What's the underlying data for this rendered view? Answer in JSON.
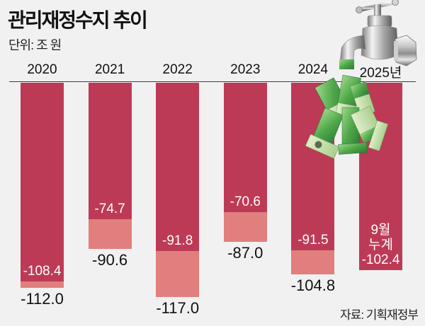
{
  "header": {
    "title": "관리재정수지 추이",
    "unit": "단위: 조 원"
  },
  "footer": {
    "source": "자료: 기획재정부"
  },
  "colors": {
    "background": "#f1f1f1",
    "bar_dark": "#bd3a56",
    "bar_light": "#e07f7d",
    "inner_label": "#ffffff",
    "outer_label": "#111111"
  },
  "chart_view": {
    "year_labels": [
      "2020",
      "2021",
      "2022",
      "2023",
      "2024",
      "2025년"
    ],
    "inner_labels": [
      [
        "-108.4"
      ],
      [
        "-74.7"
      ],
      [
        "-91.8"
      ],
      [
        "-70.6"
      ],
      [
        "-91.5"
      ],
      [
        "9월",
        "누계",
        "-102.4"
      ]
    ],
    "outer_labels": [
      "-112.0",
      "-90.6",
      "-117.0",
      "-87.0",
      "-104.8",
      null
    ]
  },
  "illustration": {
    "faucet_icon": "faucet-icon",
    "money_icon": "banknotes-icon"
  },
  "chart_data": {
    "type": "bar",
    "title": "관리재정수지 추이",
    "subtitle": "단위: 조 원",
    "xlabel": "",
    "ylabel": "조 원",
    "categories": [
      "2020",
      "2021",
      "2022",
      "2023",
      "2024",
      "2025년"
    ],
    "series": [
      {
        "name": "9월 누계 (dark, inner)",
        "values": [
          -108.4,
          -74.7,
          -91.8,
          -70.6,
          -91.5,
          -102.4
        ]
      },
      {
        "name": "full-year (light, outer)",
        "values": [
          -112.0,
          -90.6,
          -117.0,
          -87.0,
          -104.8,
          null
        ]
      }
    ],
    "annotations": [
      "9월 누계 -102.4 (2025)"
    ],
    "source": "자료: 기획재정부",
    "ylim": [
      -117.0,
      0
    ],
    "grid": false,
    "legend": "none",
    "orientation": "vertical, bars hang downward from zero baseline"
  }
}
